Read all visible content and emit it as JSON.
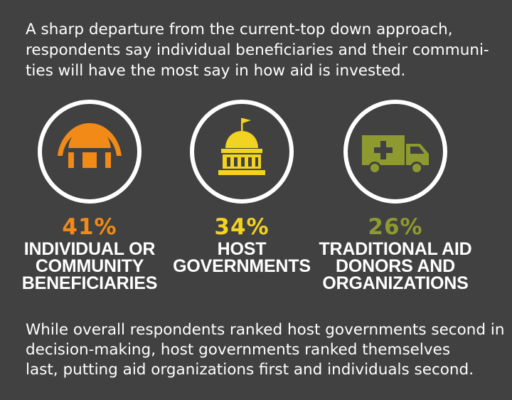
{
  "intro": {
    "lines": [
      "A sharp departure from the current-top down approach,",
      "respondents say individual beneficiaries and their communi-",
      "ties will have the most say in how aid is invested."
    ]
  },
  "stats": [
    {
      "percent": "41%",
      "value": 41,
      "label_lines": [
        "INDIVIDUAL OR",
        "COMMUNITY",
        "BENEFICIARIES"
      ],
      "color": "#f28a17",
      "icon": "hut-icon"
    },
    {
      "percent": "34%",
      "value": 34,
      "label_lines": [
        "HOST",
        "GOVERNMENTS"
      ],
      "color": "#f3d321",
      "icon": "capitol-building-icon"
    },
    {
      "percent": "26%",
      "value": 26,
      "label_lines": [
        "TRADITIONAL AID",
        "DONORS AND",
        "ORGANIZATIONS"
      ],
      "color": "#8e9a2f",
      "icon": "aid-truck-icon"
    }
  ],
  "outro": {
    "lines": [
      "While overall respondents ranked host governments second in",
      "decision-making, host governments ranked themselves",
      "last, putting aid organizations first and individuals second."
    ]
  },
  "colors": {
    "background": "#414141",
    "text": "#ffffff"
  }
}
